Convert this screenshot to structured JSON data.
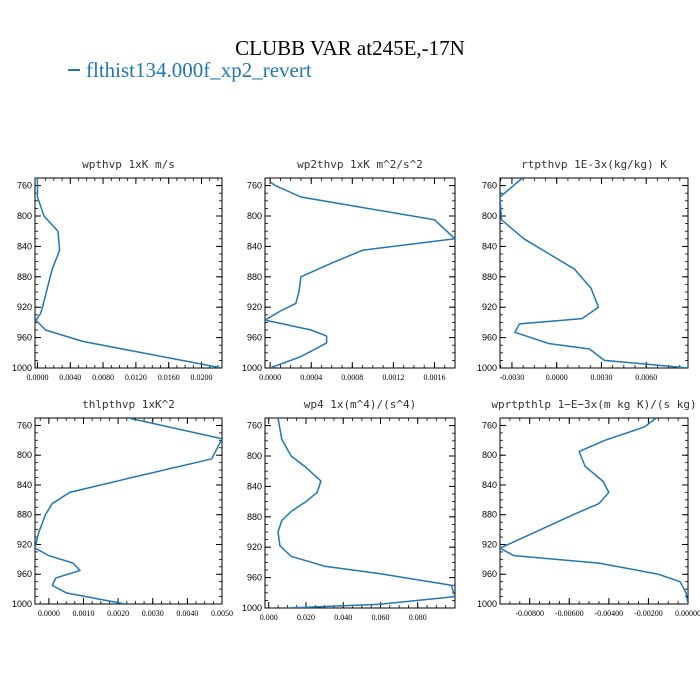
{
  "figure": {
    "title": "CLUBB VAR at245E,-17N",
    "legend_label": "flthist134.000f_xp2_revert",
    "series_color": "#1f77b4"
  },
  "chart_data": [
    {
      "type": "line",
      "title": "wpthvp  1xK m/s",
      "xlim": [
        -0.0003,
        0.0225
      ],
      "xticks": [
        0.0,
        0.004,
        0.008,
        0.012,
        0.016,
        0.02
      ],
      "xtick_labels": [
        "0.0000",
        "0.0040",
        "0.0080",
        "0.0120",
        "0.0160",
        "0.0200"
      ],
      "ylim": [
        1000,
        750
      ],
      "yticks": [
        760,
        800,
        840,
        880,
        920,
        960,
        1000
      ],
      "ytick_labels": [
        "760",
        "800",
        "840",
        "880",
        "920",
        "960",
        "1000"
      ],
      "x": [
        0.0,
        0.0,
        0.0008,
        0.0025,
        0.0027,
        0.0018,
        0.0012,
        0.0008,
        0.0004,
        -0.0002,
        0.001,
        0.0055,
        0.0225
      ],
      "y": [
        750,
        775,
        800,
        820,
        845,
        870,
        895,
        912,
        928,
        937,
        950,
        965,
        1000
      ]
    },
    {
      "type": "line",
      "title": "wp2thvp  1xK m^2/s^2",
      "xlim": [
        -5e-05,
        0.0018
      ],
      "xticks": [
        0.0,
        0.0004,
        0.0008,
        0.0012,
        0.0016
      ],
      "xtick_labels": [
        "0.0000",
        "0.0004",
        "0.0008",
        "0.0012",
        "0.0016"
      ],
      "ylim": [
        1000,
        750
      ],
      "yticks": [
        760,
        800,
        840,
        880,
        920,
        960,
        1000
      ],
      "ytick_labels": [
        "760",
        "800",
        "840",
        "880",
        "920",
        "960",
        "1000"
      ],
      "x": [
        0.0,
        5e-05,
        0.0003,
        0.0016,
        0.0018,
        0.0009,
        0.0006,
        0.0003,
        0.00028,
        0.00025,
        0.0001,
        -5e-05,
        0.0004,
        0.00055,
        0.00055,
        0.0003,
        0.0
      ],
      "y": [
        755,
        760,
        775,
        805,
        830,
        845,
        862,
        880,
        900,
        915,
        925,
        937,
        950,
        958,
        967,
        985,
        1000
      ]
    },
    {
      "type": "line",
      "title": "rtpthvp  1E-3x(kg/kg) K",
      "xlim": [
        -0.0038,
        0.0088
      ],
      "xticks": [
        -0.003,
        0.0,
        0.003,
        0.006
      ],
      "xtick_labels": [
        "-0.0030",
        "0.0000",
        "0.0030",
        "0.0060"
      ],
      "ylim": [
        1000,
        750
      ],
      "yticks": [
        760,
        800,
        840,
        880,
        920,
        960,
        1000
      ],
      "ytick_labels": [
        "760",
        "800",
        "840",
        "880",
        "920",
        "960",
        "1000"
      ],
      "x": [
        -0.0023,
        -0.0038,
        -0.0037,
        -0.0022,
        -0.0005,
        0.0012,
        0.0023,
        0.0028,
        0.0017,
        -0.0025,
        -0.0028,
        -0.0005,
        0.0022,
        0.0032,
        0.0088
      ],
      "y": [
        750,
        775,
        805,
        830,
        850,
        870,
        895,
        920,
        935,
        942,
        953,
        968,
        975,
        990,
        1000
      ]
    },
    {
      "type": "line",
      "title": "thlpthvp  1xK^2",
      "xlim": [
        -0.0004,
        0.005
      ],
      "xticks": [
        0.0,
        0.001,
        0.002,
        0.003,
        0.004,
        0.005
      ],
      "xtick_labels": [
        "0.0000",
        "0.0010",
        "0.0020",
        "0.0030",
        "0.0040",
        "0.0050"
      ],
      "ylim": [
        1000,
        750
      ],
      "yticks": [
        760,
        800,
        840,
        880,
        920,
        960,
        1000
      ],
      "ytick_labels": [
        "760",
        "800",
        "840",
        "880",
        "920",
        "960",
        "1000"
      ],
      "x": [
        0.0023,
        0.005,
        0.0047,
        0.0024,
        0.0006,
        0.0001,
        -0.0001,
        -0.0003,
        -0.0004,
        0.0,
        0.0007,
        0.0009,
        0.0002,
        0.0001,
        0.0005,
        0.0022
      ],
      "y": [
        750,
        778,
        805,
        830,
        850,
        865,
        880,
        905,
        925,
        935,
        945,
        955,
        965,
        975,
        985,
        1000
      ]
    },
    {
      "type": "line",
      "title": "wp4  1x(m^4)/(s^4)",
      "xlim": [
        -0.002,
        0.1
      ],
      "xticks": [
        0.0,
        0.02,
        0.04,
        0.06,
        0.08
      ],
      "xtick_labels": [
        "0.000",
        "0.020",
        "0.040",
        "0.060",
        "0.080"
      ],
      "ylim": [
        1000,
        750
      ],
      "yticks": [
        760,
        800,
        840,
        880,
        920,
        960,
        1000
      ],
      "ytick_labels": [
        "760",
        "800",
        "840",
        "880",
        "920",
        "960",
        "1000"
      ],
      "x": [
        0.005,
        0.007,
        0.012,
        0.02,
        0.028,
        0.026,
        0.02,
        0.012,
        0.007,
        0.005,
        0.006,
        0.012,
        0.03,
        0.06,
        0.098,
        0.1,
        0.06,
        0.01
      ],
      "y": [
        750,
        778,
        800,
        815,
        833,
        848,
        860,
        873,
        885,
        900,
        918,
        932,
        945,
        955,
        970,
        985,
        995,
        1000
      ]
    },
    {
      "type": "line",
      "title": "wprtpthlp  1−E−3x(m kg K)/(s kg)",
      "xlim": [
        -0.0095,
        0.0
      ],
      "xticks": [
        -0.008,
        -0.006,
        -0.004,
        -0.002,
        0.0
      ],
      "xtick_labels": [
        "-0.00800",
        "-0.00600",
        "-0.00400",
        "-0.00200",
        "0.00000"
      ],
      "ylim": [
        1000,
        750
      ],
      "yticks": [
        760,
        800,
        840,
        880,
        920,
        960,
        1000
      ],
      "ytick_labels": [
        "760",
        "800",
        "840",
        "880",
        "920",
        "960",
        "1000"
      ],
      "x": [
        -0.0016,
        -0.0022,
        -0.0042,
        -0.0055,
        -0.0052,
        -0.0043,
        -0.004,
        -0.0045,
        -0.0058,
        -0.0095,
        -0.0088,
        -0.0045,
        -0.0015,
        -0.0004,
        -0.0001,
        0.0
      ],
      "y": [
        750,
        762,
        780,
        795,
        815,
        835,
        850,
        865,
        880,
        925,
        935,
        945,
        960,
        970,
        985,
        1000
      ]
    }
  ]
}
